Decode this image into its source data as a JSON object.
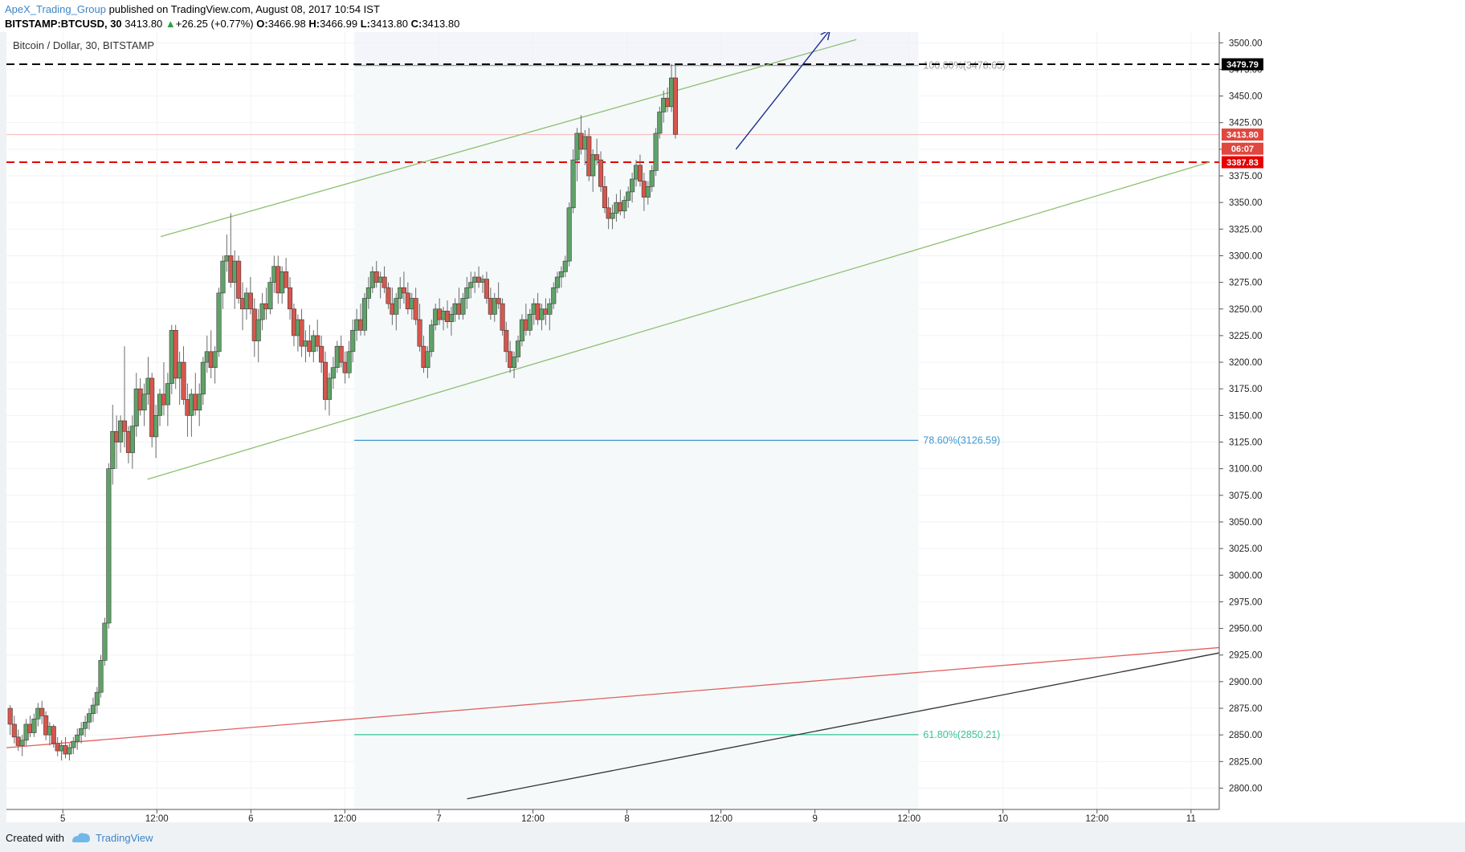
{
  "header": {
    "author": "ApeX_Trading_Group",
    "published": "published on TradingView.com, August 08, 2017 10:54 IST",
    "symbol": "BITSTAMP:BTCUSD, 30",
    "last": "3413.80",
    "change": "+26.25 (+0.77%)",
    "o_label": "O:",
    "o": "3466.98",
    "h_label": "H:",
    "h": "3466.99",
    "l_label": "L:",
    "l": "3413.80",
    "c_label": "C:",
    "c": "3413.80"
  },
  "chart_title": "Bitcoin / Dollar, 30, BITSTAMP",
  "footer": {
    "created_with": "Created with",
    "brand": "TradingView"
  },
  "chart_data": {
    "type": "candlestick",
    "title": "Bitcoin / Dollar, 30, BITSTAMP",
    "ylim": [
      2780,
      3510
    ],
    "xlim": [
      4.7,
      11.15
    ],
    "y_ticks": [
      "2800.00",
      "2825.00",
      "2850.00",
      "2875.00",
      "2900.00",
      "2925.00",
      "2950.00",
      "2975.00",
      "3000.00",
      "3025.00",
      "3050.00",
      "3075.00",
      "3100.00",
      "3125.00",
      "3150.00",
      "3175.00",
      "3200.00",
      "3225.00",
      "3250.00",
      "3275.00",
      "3300.00",
      "3325.00",
      "3350.00",
      "3375.00",
      "3400.00",
      "3425.00",
      "3450.00",
      "3475.00",
      "3500.00"
    ],
    "x_ticks": [
      {
        "x": 5,
        "label": "5"
      },
      {
        "x": 5.5,
        "label": "12:00"
      },
      {
        "x": 6,
        "label": "6"
      },
      {
        "x": 6.5,
        "label": "12:00"
      },
      {
        "x": 7,
        "label": "7"
      },
      {
        "x": 7.5,
        "label": "12:00"
      },
      {
        "x": 8,
        "label": "8"
      },
      {
        "x": 8.5,
        "label": "12:00"
      },
      {
        "x": 9,
        "label": "9"
      },
      {
        "x": 9.5,
        "label": "12:00"
      },
      {
        "x": 10,
        "label": "10"
      },
      {
        "x": 10.5,
        "label": "12:00"
      },
      {
        "x": 11,
        "label": "11"
      }
    ],
    "price_labels": [
      {
        "value": 3479.79,
        "text": "3479.79",
        "color": "#000000"
      },
      {
        "value": 3413.8,
        "text": "3413.80",
        "color": "#e0473e"
      },
      {
        "value": 3400.5,
        "text": "06:07",
        "color": "#e0473e"
      },
      {
        "value": 3387.83,
        "text": "3387.83",
        "color": "#e60000"
      }
    ],
    "horizontal_lines": [
      {
        "value": 3479.79,
        "color": "#000000",
        "style": "dashed"
      },
      {
        "value": 3387.83,
        "color": "#e60000",
        "style": "dashed"
      },
      {
        "value": 3413.8,
        "color": "#f4b6b6",
        "style": "solid"
      }
    ],
    "fib_levels": [
      {
        "label": "100.00%(3478.65)",
        "value": 3478.65,
        "color": "#9e9e9e"
      },
      {
        "label": "78.60%(3126.59)",
        "value": 3126.59,
        "color": "#3d9ad1"
      },
      {
        "label": "61.80%(2850.21)",
        "value": 2850.21,
        "color": "#35c49a"
      }
    ],
    "fib_range_x": [
      6.55,
      9.55
    ],
    "trend_lines": [
      {
        "color": "#8fbf6f",
        "from": [
          5.52,
          3318
        ],
        "to": [
          9.22,
          3503
        ]
      },
      {
        "color": "#8fbf6f",
        "from": [
          5.45,
          3090
        ],
        "to": [
          11.1,
          3388
        ]
      },
      {
        "color": "#e05f5f",
        "from": [
          4.7,
          2838
        ],
        "to": [
          11.15,
          2932
        ]
      },
      {
        "color": "#333333",
        "from": [
          7.15,
          2790
        ],
        "to": [
          11.15,
          2927
        ]
      }
    ],
    "arrow": {
      "color": "#1f2e8f",
      "from": [
        8.58,
        3400
      ],
      "to": [
        9.08,
        3512
      ]
    },
    "candles": [
      [
        4.72,
        2875,
        2878,
        2850,
        2860
      ],
      [
        4.742,
        2860,
        2868,
        2842,
        2848
      ],
      [
        4.763,
        2848,
        2855,
        2835,
        2840
      ],
      [
        4.784,
        2840,
        2850,
        2830,
        2845
      ],
      [
        4.805,
        2845,
        2865,
        2840,
        2860
      ],
      [
        4.826,
        2860,
        2868,
        2848,
        2852
      ],
      [
        4.847,
        2852,
        2870,
        2848,
        2865
      ],
      [
        4.868,
        2865,
        2880,
        2858,
        2875
      ],
      [
        4.889,
        2875,
        2882,
        2860,
        2868
      ],
      [
        4.91,
        2868,
        2872,
        2845,
        2850
      ],
      [
        4.93,
        2850,
        2862,
        2840,
        2858
      ],
      [
        4.951,
        2858,
        2860,
        2838,
        2842
      ],
      [
        4.972,
        2842,
        2848,
        2830,
        2835
      ],
      [
        4.993,
        2835,
        2845,
        2826,
        2840
      ],
      [
        5.014,
        2840,
        2848,
        2828,
        2832
      ],
      [
        5.035,
        2832,
        2842,
        2826,
        2838
      ],
      [
        5.056,
        2838,
        2848,
        2832,
        2844
      ],
      [
        5.077,
        2844,
        2856,
        2836,
        2850
      ],
      [
        5.098,
        2850,
        2862,
        2842,
        2856
      ],
      [
        5.119,
        2856,
        2868,
        2848,
        2862
      ],
      [
        5.14,
        2862,
        2875,
        2855,
        2870
      ],
      [
        5.161,
        2870,
        2885,
        2862,
        2878
      ],
      [
        5.182,
        2878,
        2895,
        2870,
        2890
      ],
      [
        5.202,
        2890,
        2925,
        2885,
        2920
      ],
      [
        5.223,
        2920,
        2960,
        2915,
        2955
      ],
      [
        5.244,
        2955,
        3105,
        2950,
        3100
      ],
      [
        5.265,
        3100,
        3160,
        3085,
        3135
      ],
      [
        5.286,
        3135,
        3150,
        3100,
        3125
      ],
      [
        5.307,
        3125,
        3150,
        3115,
        3145
      ],
      [
        5.328,
        3145,
        3215,
        3120,
        3135
      ],
      [
        5.349,
        3135,
        3140,
        3105,
        3115
      ],
      [
        5.37,
        3115,
        3150,
        3100,
        3140
      ],
      [
        5.391,
        3140,
        3190,
        3130,
        3175
      ],
      [
        5.412,
        3175,
        3185,
        3150,
        3155
      ],
      [
        5.433,
        3155,
        3180,
        3140,
        3170
      ],
      [
        5.454,
        3170,
        3205,
        3160,
        3185
      ],
      [
        5.474,
        3185,
        3190,
        3120,
        3130
      ],
      [
        5.495,
        3130,
        3160,
        3110,
        3150
      ],
      [
        5.516,
        3150,
        3175,
        3140,
        3170
      ],
      [
        5.537,
        3170,
        3200,
        3150,
        3160
      ],
      [
        5.558,
        3160,
        3190,
        3140,
        3180
      ],
      [
        5.579,
        3180,
        3235,
        3170,
        3230
      ],
      [
        5.6,
        3230,
        3235,
        3175,
        3185
      ],
      [
        5.621,
        3185,
        3210,
        3160,
        3200
      ],
      [
        5.642,
        3200,
        3215,
        3160,
        3165
      ],
      [
        5.663,
        3165,
        3180,
        3130,
        3150
      ],
      [
        5.684,
        3150,
        3175,
        3130,
        3170
      ],
      [
        5.705,
        3170,
        3190,
        3150,
        3155
      ],
      [
        5.726,
        3155,
        3180,
        3140,
        3170
      ],
      [
        5.746,
        3170,
        3205,
        3160,
        3200
      ],
      [
        5.767,
        3200,
        3225,
        3190,
        3210
      ],
      [
        5.788,
        3210,
        3230,
        3185,
        3195
      ],
      [
        5.809,
        3195,
        3215,
        3180,
        3210
      ],
      [
        5.83,
        3210,
        3270,
        3205,
        3265
      ],
      [
        5.851,
        3265,
        3300,
        3250,
        3295
      ],
      [
        5.872,
        3295,
        3320,
        3285,
        3300
      ],
      [
        5.893,
        3300,
        3340,
        3270,
        3275
      ],
      [
        5.914,
        3275,
        3305,
        3250,
        3295
      ],
      [
        5.935,
        3295,
        3300,
        3255,
        3260
      ],
      [
        5.956,
        3260,
        3275,
        3230,
        3250
      ],
      [
        5.977,
        3250,
        3270,
        3240,
        3265
      ],
      [
        5.998,
        3265,
        3280,
        3245,
        3250
      ],
      [
        6.019,
        3250,
        3260,
        3205,
        3220
      ],
      [
        6.04,
        3220,
        3250,
        3200,
        3240
      ],
      [
        6.061,
        3240,
        3265,
        3230,
        3255
      ],
      [
        6.082,
        3255,
        3270,
        3240,
        3250
      ],
      [
        6.103,
        3250,
        3280,
        3245,
        3275
      ],
      [
        6.124,
        3275,
        3300,
        3265,
        3290
      ],
      [
        6.145,
        3290,
        3300,
        3255,
        3265
      ],
      [
        6.166,
        3265,
        3290,
        3255,
        3285
      ],
      [
        6.187,
        3285,
        3298,
        3270,
        3270
      ],
      [
        6.208,
        3270,
        3280,
        3240,
        3250
      ],
      [
        6.229,
        3250,
        3255,
        3215,
        3225
      ],
      [
        6.25,
        3225,
        3245,
        3210,
        3240
      ],
      [
        6.27,
        3240,
        3250,
        3205,
        3215
      ],
      [
        6.291,
        3215,
        3230,
        3200,
        3220
      ],
      [
        6.312,
        3220,
        3235,
        3205,
        3210
      ],
      [
        6.333,
        3210,
        3230,
        3200,
        3225
      ],
      [
        6.354,
        3225,
        3240,
        3210,
        3215
      ],
      [
        6.375,
        3215,
        3225,
        3190,
        3200
      ],
      [
        6.396,
        3200,
        3210,
        3155,
        3165
      ],
      [
        6.417,
        3165,
        3190,
        3150,
        3185
      ],
      [
        6.438,
        3185,
        3205,
        3175,
        3195
      ],
      [
        6.459,
        3195,
        3220,
        3190,
        3215
      ],
      [
        6.48,
        3215,
        3225,
        3195,
        3200
      ],
      [
        6.501,
        3200,
        3210,
        3180,
        3190
      ],
      [
        6.522,
        3190,
        3220,
        3185,
        3210
      ],
      [
        6.542,
        3210,
        3240,
        3200,
        3230
      ],
      [
        6.563,
        3230,
        3250,
        3220,
        3240
      ],
      [
        6.584,
        3240,
        3255,
        3225,
        3230
      ],
      [
        6.605,
        3230,
        3265,
        3225,
        3260
      ],
      [
        6.626,
        3260,
        3280,
        3250,
        3270
      ],
      [
        6.647,
        3270,
        3290,
        3265,
        3285
      ],
      [
        6.668,
        3285,
        3295,
        3270,
        3275
      ],
      [
        6.689,
        3275,
        3285,
        3260,
        3280
      ],
      [
        6.71,
        3280,
        3290,
        3265,
        3270
      ],
      [
        6.731,
        3270,
        3275,
        3250,
        3255
      ],
      [
        6.752,
        3255,
        3270,
        3235,
        3245
      ],
      [
        6.773,
        3245,
        3265,
        3230,
        3260
      ],
      [
        6.794,
        3260,
        3280,
        3250,
        3270
      ],
      [
        6.814,
        3270,
        3285,
        3255,
        3265
      ],
      [
        6.835,
        3265,
        3275,
        3245,
        3250
      ],
      [
        6.856,
        3250,
        3265,
        3240,
        3260
      ],
      [
        6.877,
        3260,
        3270,
        3235,
        3240
      ],
      [
        6.898,
        3240,
        3255,
        3210,
        3215
      ],
      [
        6.919,
        3215,
        3225,
        3190,
        3195
      ],
      [
        6.94,
        3195,
        3215,
        3185,
        3210
      ],
      [
        6.961,
        3210,
        3240,
        3205,
        3235
      ],
      [
        6.982,
        3235,
        3255,
        3230,
        3250
      ],
      [
        7.003,
        3250,
        3260,
        3235,
        3240
      ],
      [
        7.024,
        3240,
        3252,
        3230,
        3248
      ],
      [
        7.045,
        3248,
        3258,
        3232,
        3238
      ],
      [
        7.066,
        3238,
        3252,
        3225,
        3245
      ],
      [
        7.086,
        3245,
        3260,
        3238,
        3255
      ],
      [
        7.107,
        3255,
        3270,
        3240,
        3245
      ],
      [
        7.128,
        3245,
        3265,
        3240,
        3260
      ],
      [
        7.149,
        3260,
        3280,
        3250,
        3270
      ],
      [
        7.17,
        3270,
        3285,
        3260,
        3275
      ],
      [
        7.191,
        3275,
        3285,
        3265,
        3280
      ],
      [
        7.212,
        3280,
        3290,
        3270,
        3275
      ],
      [
        7.233,
        3275,
        3282,
        3265,
        3278
      ],
      [
        7.254,
        3278,
        3285,
        3255,
        3260
      ],
      [
        7.275,
        3260,
        3270,
        3240,
        3245
      ],
      [
        7.296,
        3245,
        3265,
        3238,
        3260
      ],
      [
        7.317,
        3260,
        3275,
        3250,
        3255
      ],
      [
        7.338,
        3255,
        3260,
        3225,
        3230
      ],
      [
        7.358,
        3230,
        3238,
        3200,
        3210
      ],
      [
        7.379,
        3210,
        3220,
        3190,
        3195
      ],
      [
        7.4,
        3195,
        3210,
        3185,
        3205
      ],
      [
        7.421,
        3205,
        3225,
        3200,
        3220
      ],
      [
        7.442,
        3220,
        3245,
        3215,
        3240
      ],
      [
        7.463,
        3240,
        3255,
        3225,
        3230
      ],
      [
        7.484,
        3230,
        3250,
        3225,
        3245
      ],
      [
        7.505,
        3245,
        3260,
        3235,
        3255
      ],
      [
        7.526,
        3255,
        3265,
        3235,
        3240
      ],
      [
        7.547,
        3240,
        3255,
        3230,
        3250
      ],
      [
        7.568,
        3250,
        3260,
        3235,
        3245
      ],
      [
        7.589,
        3245,
        3260,
        3230,
        3255
      ],
      [
        7.61,
        3255,
        3275,
        3250,
        3270
      ],
      [
        7.63,
        3270,
        3285,
        3265,
        3280
      ],
      [
        7.651,
        3280,
        3290,
        3270,
        3285
      ],
      [
        7.672,
        3285,
        3300,
        3280,
        3295
      ],
      [
        7.693,
        3295,
        3350,
        3290,
        3345
      ],
      [
        7.714,
        3345,
        3400,
        3340,
        3390
      ],
      [
        7.735,
        3390,
        3420,
        3370,
        3415
      ],
      [
        7.756,
        3415,
        3432,
        3395,
        3400
      ],
      [
        7.777,
        3400,
        3418,
        3385,
        3412
      ],
      [
        7.798,
        3412,
        3420,
        3370,
        3375
      ],
      [
        7.819,
        3375,
        3400,
        3360,
        3395
      ],
      [
        7.84,
        3395,
        3410,
        3385,
        3390
      ],
      [
        7.861,
        3390,
        3398,
        3360,
        3365
      ],
      [
        7.882,
        3365,
        3375,
        3340,
        3345
      ],
      [
        7.902,
        3345,
        3355,
        3325,
        3335
      ],
      [
        7.923,
        3335,
        3348,
        3325,
        3340
      ],
      [
        7.944,
        3340,
        3358,
        3332,
        3350
      ],
      [
        7.965,
        3350,
        3362,
        3338,
        3342
      ],
      [
        7.986,
        3342,
        3356,
        3335,
        3352
      ],
      [
        8.007,
        3352,
        3365,
        3345,
        3360
      ],
      [
        8.028,
        3360,
        3378,
        3350,
        3372
      ],
      [
        8.049,
        3372,
        3390,
        3365,
        3385
      ],
      [
        8.07,
        3385,
        3395,
        3365,
        3370
      ],
      [
        8.091,
        3370,
        3378,
        3342,
        3355
      ],
      [
        8.112,
        3355,
        3370,
        3348,
        3365
      ],
      [
        8.133,
        3365,
        3385,
        3360,
        3380
      ],
      [
        8.154,
        3380,
        3420,
        3375,
        3415
      ],
      [
        8.174,
        3415,
        3440,
        3410,
        3435
      ],
      [
        8.195,
        3435,
        3455,
        3425,
        3448
      ],
      [
        8.216,
        3448,
        3458,
        3435,
        3440
      ],
      [
        8.237,
        3440,
        3480,
        3435,
        3467
      ],
      [
        8.258,
        3467,
        3480,
        3410,
        3414
      ]
    ]
  }
}
